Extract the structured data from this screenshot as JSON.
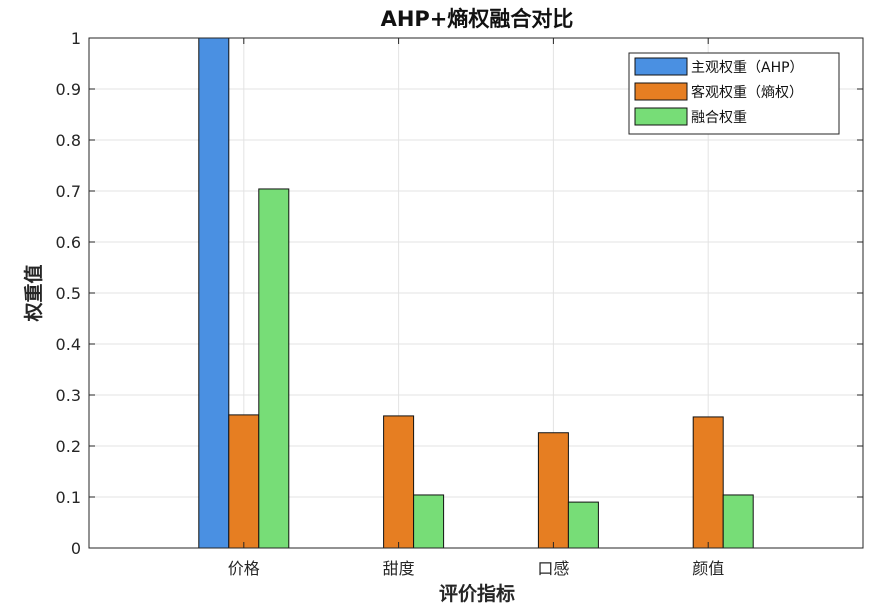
{
  "chart_data": {
    "type": "bar",
    "title": "AHP+熵权融合对比",
    "xlabel": "评价指标",
    "ylabel": "权重值",
    "categories": [
      "价格",
      "甜度",
      "口感",
      "颜值"
    ],
    "series": [
      {
        "name": "主观权重（AHP）",
        "color": "#4a90e2",
        "values": [
          1.0,
          0,
          0,
          0
        ]
      },
      {
        "name": "客观权重（熵权）",
        "color": "#e67e22",
        "values": [
          0.261,
          0.259,
          0.226,
          0.257
        ]
      },
      {
        "name": "融合权重",
        "color": "#77dd77",
        "values": [
          0.704,
          0.104,
          0.09,
          0.104
        ]
      }
    ],
    "ylim": [
      0,
      1
    ],
    "yticks": [
      "0",
      "0.1",
      "0.2",
      "0.3",
      "0.4",
      "0.5",
      "0.6",
      "0.7",
      "0.8",
      "0.9",
      "1"
    ],
    "grid": true,
    "legend_position": "top-right"
  }
}
